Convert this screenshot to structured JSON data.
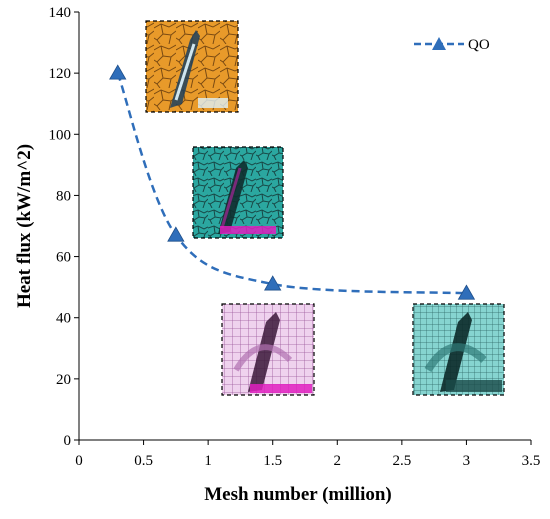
{
  "chart_data": {
    "type": "line",
    "xlabel": "Mesh number (million)",
    "ylabel": "Heat flux (kW/m^2)",
    "xlim": [
      0,
      3.5
    ],
    "ylim": [
      0,
      140
    ],
    "xticks": [
      0,
      0.5,
      1,
      1.5,
      2,
      2.5,
      3,
      3.5
    ],
    "yticks": [
      0,
      20,
      40,
      60,
      80,
      100,
      120,
      140
    ],
    "xtick_labels": [
      "0",
      "0.5",
      "1",
      "1.5",
      "2",
      "2.5",
      "3",
      "3.5"
    ],
    "ytick_labels": [
      "0",
      "20",
      "40",
      "60",
      "80",
      "100",
      "120",
      "140"
    ],
    "grid": false,
    "legend_position": "top-right",
    "series": [
      {
        "name": "QO",
        "x": [
          0.3,
          0.75,
          1.5,
          3.0
        ],
        "y": [
          120,
          67,
          51,
          48
        ],
        "color": "#2F6EBA",
        "line_style": "dashed",
        "marker": "triangle"
      }
    ],
    "insets": [
      {
        "name": "mesh-inset-polyhedral-orange",
        "fill": "#E89A2A",
        "line": "#7A4A12"
      },
      {
        "name": "mesh-inset-polyhedral-teal",
        "fill": "#2BA7A0",
        "line": "#1C4F4C"
      },
      {
        "name": "mesh-inset-hex-pink",
        "fill": "#E6C3E4",
        "line": "#8E4A8C"
      },
      {
        "name": "mesh-inset-hex-cyan",
        "fill": "#7CCFCB",
        "line": "#1F5B59"
      }
    ]
  }
}
